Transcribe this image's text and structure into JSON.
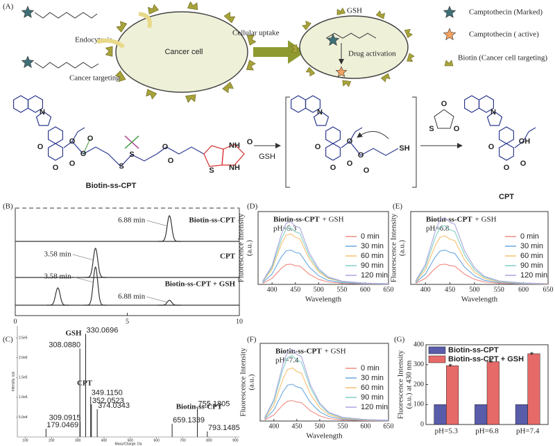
{
  "scheme": {
    "label": "(A)",
    "endocytosis": "Endocytosis",
    "targeting": "Cancer targeting",
    "cell": "Cancer cell",
    "uptake": "Cellular uptake",
    "gsh": "GSH",
    "activation": "Drug activation",
    "legend": [
      "Camptothecin (Marked)",
      "Camptothecin ( active)",
      "Biotin (Cancer cell targeting)"
    ]
  },
  "reaction": {
    "compound": "Biotin-ss-CPT",
    "reagent": "GSH",
    "product": "CPT",
    "atoms": [
      "N",
      "O",
      "O",
      "O",
      "O",
      "O",
      "O",
      "S",
      "S",
      "O",
      "O",
      "S",
      "NH",
      "NH",
      "O",
      "N",
      "O",
      "O",
      "O",
      "O",
      "O",
      "O",
      "SH",
      "O",
      "S",
      "O",
      "N",
      "O",
      "O",
      "O",
      "OH"
    ]
  },
  "chart_data": [
    {
      "type": "chromatogram",
      "label": "(B)",
      "xlim": [
        0,
        10
      ],
      "xticks": [
        0,
        5,
        10
      ],
      "ylim": [
        0,
        60
      ],
      "series": [
        {
          "name": "Biotin-ss-CPT",
          "x": [
            6.88
          ],
          "values": [
            37
          ],
          "x_labels": [
            "6.88 min"
          ]
        },
        {
          "name": "CPT",
          "x": [
            3.58
          ],
          "values": [
            42
          ],
          "x_labels": [
            "3.58 min"
          ]
        },
        {
          "name": "Biotin-ss-CPT + GSH",
          "x": [
            1.9,
            3.58,
            6.88
          ],
          "values": [
            25,
            55,
            7
          ],
          "x_labels": [
            null,
            "3.58 min",
            "6.88 min"
          ]
        }
      ]
    },
    {
      "type": "stem",
      "label": "(C)",
      "xlabel": "Mass/Charge, Da",
      "ylabel": "Intensity, cps",
      "xlim": [
        70,
        915
      ],
      "ylim": [
        0,
        280000
      ],
      "xticks": [
        100,
        200,
        300,
        400,
        500,
        600,
        700,
        800,
        900
      ],
      "yticks": [
        {
          "value": 50000,
          "label": "5.0e4"
        },
        {
          "value": 100000,
          "label": "1.0e5"
        },
        {
          "value": 150000,
          "label": "1.5e5"
        },
        {
          "value": 200000,
          "label": "2.0e5"
        },
        {
          "value": 250000,
          "label": "2.5e5"
        }
      ],
      "x": [
        179.0469,
        308.088,
        309.0915,
        330.0696,
        349.115,
        352.0523,
        374.0343,
        659.1339,
        755.1805,
        793.1485
      ],
      "values": [
        21000,
        223000,
        39000,
        260000,
        102000,
        82000,
        70000,
        33000,
        74000,
        14000
      ],
      "value_labels": [
        "179.0469",
        "308.0880",
        "309.0915",
        "330.0696",
        "349.1150",
        "352.0523",
        "374.0343",
        "659.1339",
        "755.1805",
        "793.1485"
      ],
      "compound_labels": [
        "GSH",
        "CPT",
        "Biotin-ss-CPT"
      ]
    },
    {
      "type": "line",
      "label": "(D)",
      "title_bold": "Biotin-ss-CPT",
      "title_rest": "+ GSH",
      "condition": "pH=5.3",
      "xlabel": "Wavelength",
      "ylabel": [
        "Fluorescence Intensity",
        "(a.u.)"
      ],
      "xlim": [
        370,
        650
      ],
      "xticks": [
        400,
        450,
        500,
        550,
        600,
        650
      ],
      "ylim": [
        0,
        360
      ],
      "x": [
        380,
        400,
        420,
        430,
        440,
        450,
        460,
        470,
        480,
        500,
        520,
        550,
        600,
        650
      ],
      "series": [
        {
          "name": "0 min",
          "color": "#ef8a80",
          "values": [
            5,
            30,
            80,
            97,
            100,
            93,
            90,
            70,
            50,
            25,
            12,
            5,
            2,
            1
          ]
        },
        {
          "name": "30 min",
          "color": "#6aa8e0",
          "values": [
            9,
            51,
            136,
            165,
            170,
            158,
            153,
            119,
            85,
            43,
            20,
            9,
            3,
            2
          ]
        },
        {
          "name": "60 min",
          "color": "#f7c170",
          "values": [
            13,
            75,
            200,
            243,
            250,
            233,
            225,
            175,
            125,
            63,
            30,
            13,
            5,
            3
          ]
        },
        {
          "name": "90 min",
          "color": "#7fcfc6",
          "values": [
            14,
            84,
            224,
            272,
            280,
            260,
            252,
            196,
            140,
            70,
            34,
            14,
            6,
            3
          ]
        },
        {
          "name": "120 min",
          "color": "#a9a6dd",
          "values": [
            16,
            93,
            248,
            301,
            310,
            288,
            279,
            217,
            155,
            78,
            37,
            16,
            6,
            3
          ]
        }
      ]
    },
    {
      "type": "line",
      "label": "(E)",
      "title_bold": "Biotin-ss-CPT",
      "title_rest": "+ GSH",
      "condition": "pH=6.8",
      "xlabel": "Wavelength",
      "ylabel": [
        "Fluorescence Intensity",
        "(a.u.)"
      ],
      "xlim": [
        370,
        650
      ],
      "xticks": [
        400,
        450,
        500,
        550,
        600,
        650
      ],
      "ylim": [
        0,
        360
      ],
      "x": [
        380,
        400,
        420,
        430,
        440,
        450,
        460,
        470,
        480,
        500,
        520,
        550,
        600,
        650
      ],
      "series": [
        {
          "name": "0 min",
          "color": "#ef8a80",
          "values": [
            5,
            30,
            80,
            97,
            100,
            93,
            90,
            70,
            50,
            25,
            12,
            5,
            2,
            1
          ]
        },
        {
          "name": "30 min",
          "color": "#6aa8e0",
          "values": [
            9,
            51,
            136,
            165,
            170,
            158,
            153,
            119,
            85,
            43,
            20,
            9,
            3,
            2
          ]
        },
        {
          "name": "60 min",
          "color": "#f7c170",
          "values": [
            12,
            72,
            192,
            233,
            240,
            223,
            216,
            168,
            120,
            60,
            29,
            12,
            5,
            2
          ]
        },
        {
          "name": "90 min",
          "color": "#7fcfc6",
          "values": [
            15,
            87,
            232,
            281,
            290,
            270,
            261,
            203,
            145,
            73,
            35,
            15,
            6,
            3
          ]
        },
        {
          "name": "120 min",
          "color": "#a9a6dd",
          "values": [
            17,
            99,
            264,
            320,
            330,
            307,
            297,
            231,
            165,
            83,
            40,
            17,
            7,
            3
          ]
        }
      ]
    },
    {
      "type": "line",
      "label": "(F)",
      "title_bold": "Biotin-ss-CPT",
      "title_rest": "+ GSH",
      "condition": "pH=7.4",
      "xlabel": "Wavelength",
      "ylabel": [
        "Fluorescence Intensity",
        "(a.u.)"
      ],
      "xlim": [
        370,
        650
      ],
      "xticks": [
        400,
        450,
        500,
        550,
        600,
        650
      ],
      "ylim": [
        0,
        380
      ],
      "x": [
        380,
        400,
        420,
        430,
        440,
        450,
        460,
        470,
        480,
        500,
        520,
        550,
        600,
        650
      ],
      "series": [
        {
          "name": "0 min",
          "color": "#ef8a80",
          "values": [
            5,
            30,
            80,
            97,
            100,
            93,
            90,
            70,
            50,
            25,
            12,
            5,
            2,
            1
          ]
        },
        {
          "name": "30 min",
          "color": "#6aa8e0",
          "values": [
            9,
            54,
            144,
            175,
            180,
            167,
            162,
            126,
            90,
            45,
            22,
            9,
            4,
            2
          ]
        },
        {
          "name": "60 min",
          "color": "#f7c170",
          "values": [
            13,
            78,
            208,
            252,
            260,
            242,
            234,
            182,
            130,
            65,
            31,
            13,
            5,
            3
          ]
        },
        {
          "name": "90 min",
          "color": "#7fcfc6",
          "values": [
            16,
            96,
            256,
            310,
            320,
            298,
            288,
            224,
            160,
            80,
            38,
            16,
            6,
            3
          ]
        },
        {
          "name": "120 min",
          "color": "#a9a6dd",
          "values": [
            18,
            105,
            280,
            340,
            350,
            326,
            315,
            245,
            175,
            88,
            42,
            18,
            7,
            4
          ]
        }
      ]
    },
    {
      "type": "bar",
      "label": "(G)",
      "ylabel": [
        "Fluorescence Intensity",
        "(a.u.) at 430 nm"
      ],
      "ylim": [
        0,
        400
      ],
      "yticks": [
        0,
        100,
        200,
        300,
        400
      ],
      "categories": [
        "pH=5.3",
        "pH=6.8",
        "pH=7.4"
      ],
      "series": [
        {
          "name": "Biotin-ss-CPT",
          "color": "#3b3f9a",
          "values": [
            100,
            100,
            100
          ]
        },
        {
          "name": "Biotin-ss-CPT + GSH",
          "color": "#e0504e",
          "values": [
            295,
            315,
            355
          ]
        }
      ],
      "markers": [
        "*",
        "*",
        "*"
      ]
    }
  ]
}
